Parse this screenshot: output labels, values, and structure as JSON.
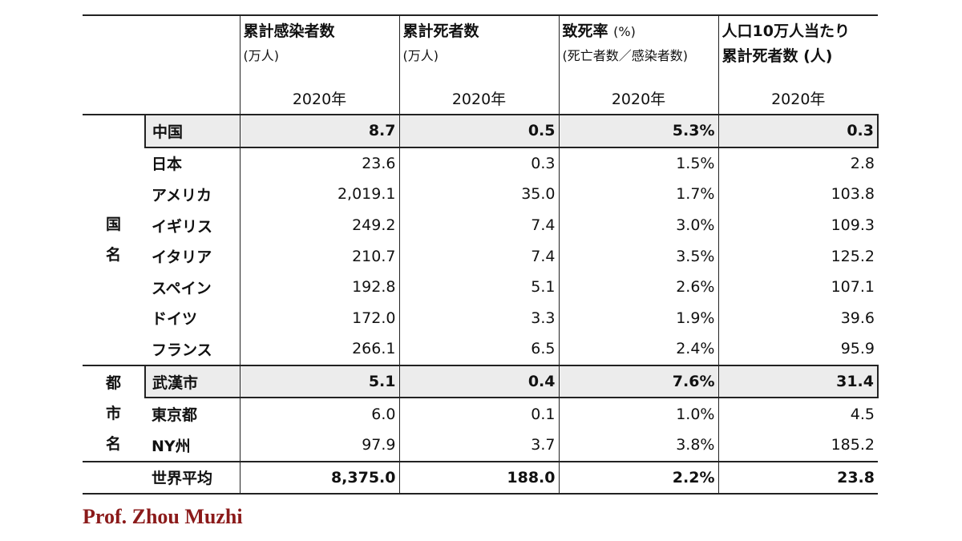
{
  "headers": [
    {
      "title": "累計感染者数",
      "title_sub": "",
      "unit": "(万人)",
      "year": "2020年"
    },
    {
      "title": "累計死者数",
      "title_sub": "",
      "unit": "(万人)",
      "year": "2020年"
    },
    {
      "title": "致死率",
      "title_sub": "(%)",
      "unit": "(死亡者数／感染者数)",
      "year": "2020年"
    },
    {
      "title": "人口10万人当たり",
      "title_sub": "",
      "unit": "累計死者数 (人)",
      "year": "2020年"
    }
  ],
  "groups": {
    "country": [
      "国",
      "名"
    ],
    "city": [
      "都",
      "市",
      "名"
    ]
  },
  "rows": [
    {
      "name": "中国",
      "values": [
        "8.7",
        "0.5",
        "5.3%",
        "0.3"
      ]
    },
    {
      "name": "日本",
      "values": [
        "23.6",
        "0.3",
        "1.5%",
        "2.8"
      ]
    },
    {
      "name": "アメリカ",
      "values": [
        "2,019.1",
        "35.0",
        "1.7%",
        "103.8"
      ]
    },
    {
      "name": "イギリス",
      "values": [
        "249.2",
        "7.4",
        "3.0%",
        "109.3"
      ]
    },
    {
      "name": "イタリア",
      "values": [
        "210.7",
        "7.4",
        "3.5%",
        "125.2"
      ]
    },
    {
      "name": "スペイン",
      "values": [
        "192.8",
        "5.1",
        "2.6%",
        "107.1"
      ]
    },
    {
      "name": "ドイツ",
      "values": [
        "172.0",
        "3.3",
        "1.9%",
        "39.6"
      ]
    },
    {
      "name": "フランス",
      "values": [
        "266.1",
        "6.5",
        "2.4%",
        "95.9"
      ]
    },
    {
      "name": "武漢市",
      "values": [
        "5.1",
        "0.4",
        "7.6%",
        "31.4"
      ]
    },
    {
      "name": "東京都",
      "values": [
        "6.0",
        "0.1",
        "1.0%",
        "4.5"
      ]
    },
    {
      "name": "NY州",
      "values": [
        "97.9",
        "3.7",
        "3.8%",
        "185.2"
      ]
    },
    {
      "name": "世界平均",
      "values": [
        "8,375.0",
        "188.0",
        "2.2%",
        "23.8"
      ]
    }
  ],
  "credit": "Prof. Zhou Muzhi"
}
